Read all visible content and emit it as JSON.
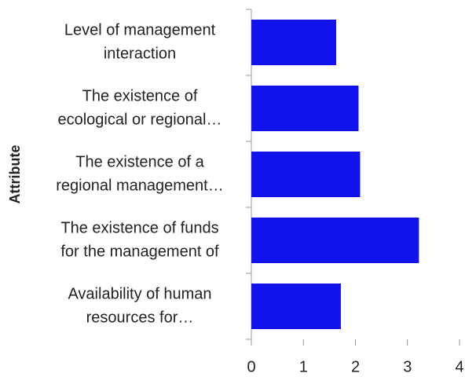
{
  "chart_data": {
    "type": "bar",
    "orientation": "horizontal",
    "y_axis_label": "Attribute",
    "categories": [
      [
        "Level of management",
        "interaction"
      ],
      [
        "The existence of",
        "ecological or regional…"
      ],
      [
        "The existence of a",
        "regional management…"
      ],
      [
        "The existence of funds",
        "for the management of"
      ],
      [
        "Availability of human",
        "resources for…"
      ]
    ],
    "values": [
      1.63,
      2.06,
      2.09,
      3.22,
      1.72
    ],
    "color": "#1212ee",
    "xlim": [
      0,
      4
    ],
    "xticks": [
      0,
      1,
      2,
      3,
      4
    ]
  }
}
